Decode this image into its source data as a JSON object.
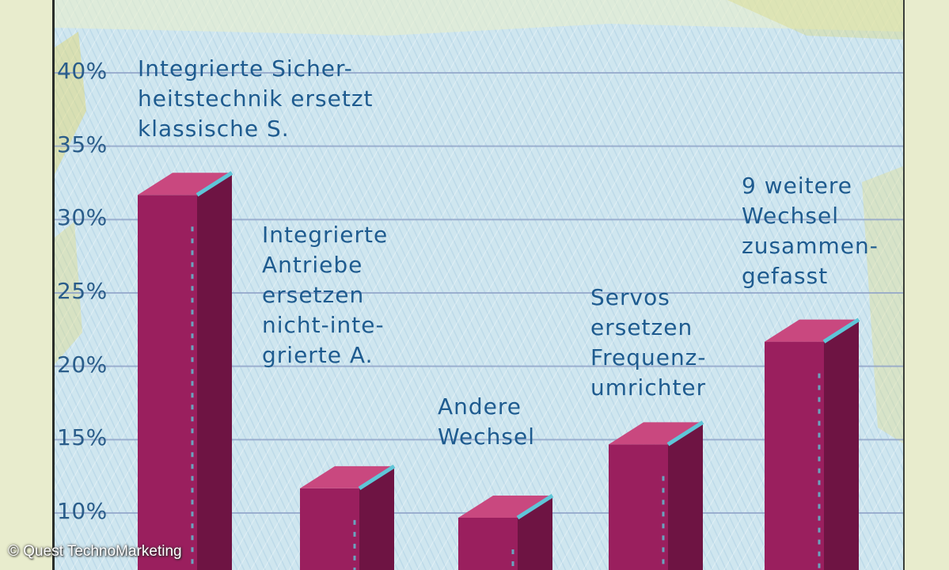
{
  "chart_data": {
    "type": "bar",
    "title": "",
    "xlabel": "",
    "ylabel": "",
    "ylim": [
      7,
      42
    ],
    "yticks": [
      "40%",
      "35%",
      "30%",
      "25%",
      "20%",
      "15%",
      "10%"
    ],
    "ytick_values": [
      40,
      35,
      30,
      25,
      20,
      15,
      10
    ],
    "grid": true,
    "categories": [
      "Integrierte Sicher-\nheitstechnik ersetzt\nklassische S.",
      "Integrierte\nAntriebe\nersetzen\nnicht-inte-\ngrierte A.",
      "Andere\nWechsel",
      "Servos\nersetzen\nFrequenz-\numrichter",
      "9 weitere\nWechsel\nzusammen-\ngefasst"
    ],
    "values": [
      32,
      12,
      10,
      15,
      22
    ],
    "bar_color": "#9a1f5e",
    "bar_top_color": "#c9487f",
    "bar_side_color": "#6e1443",
    "label_color": "#1e5b8f"
  },
  "credit": "© Quest TechnoMarketing"
}
